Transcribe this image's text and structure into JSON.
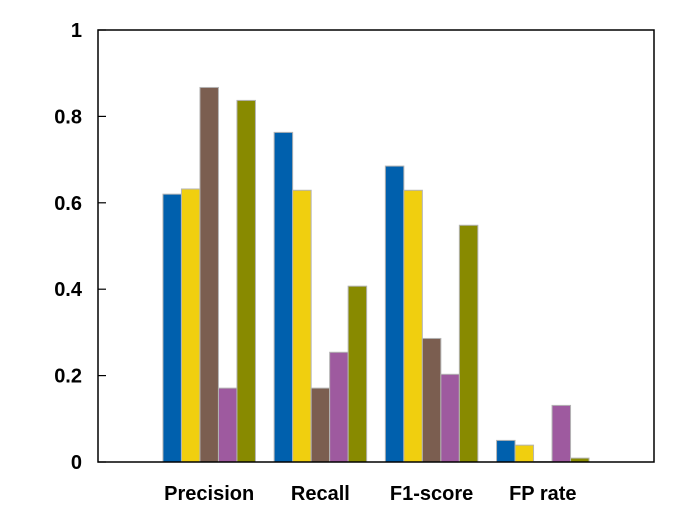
{
  "chart_data": {
    "type": "bar",
    "title": "",
    "xlabel": "",
    "ylabel": "",
    "categories": [
      "Precision",
      "Recall",
      "F1-score",
      "FP rate"
    ],
    "ylim": [
      0,
      1
    ],
    "yticks": [
      "0",
      "0.2",
      "0.4",
      "0.6",
      "0.8",
      "1"
    ],
    "grid": false,
    "legend": "none",
    "series": [
      {
        "color": "#0060ad",
        "values": [
          0.62,
          0.763,
          0.685,
          0.05
        ]
      },
      {
        "color": "#f0cf0f",
        "values": [
          0.632,
          0.629,
          0.629,
          0.039
        ]
      },
      {
        "color": "#7b5e50",
        "values": [
          0.867,
          0.171,
          0.286,
          0.001
        ]
      },
      {
        "color": "#9e5a9f",
        "values": [
          0.171,
          0.254,
          0.203,
          0.131
        ]
      },
      {
        "color": "#888a00",
        "values": [
          0.837,
          0.407,
          0.548,
          0.009
        ]
      }
    ]
  }
}
